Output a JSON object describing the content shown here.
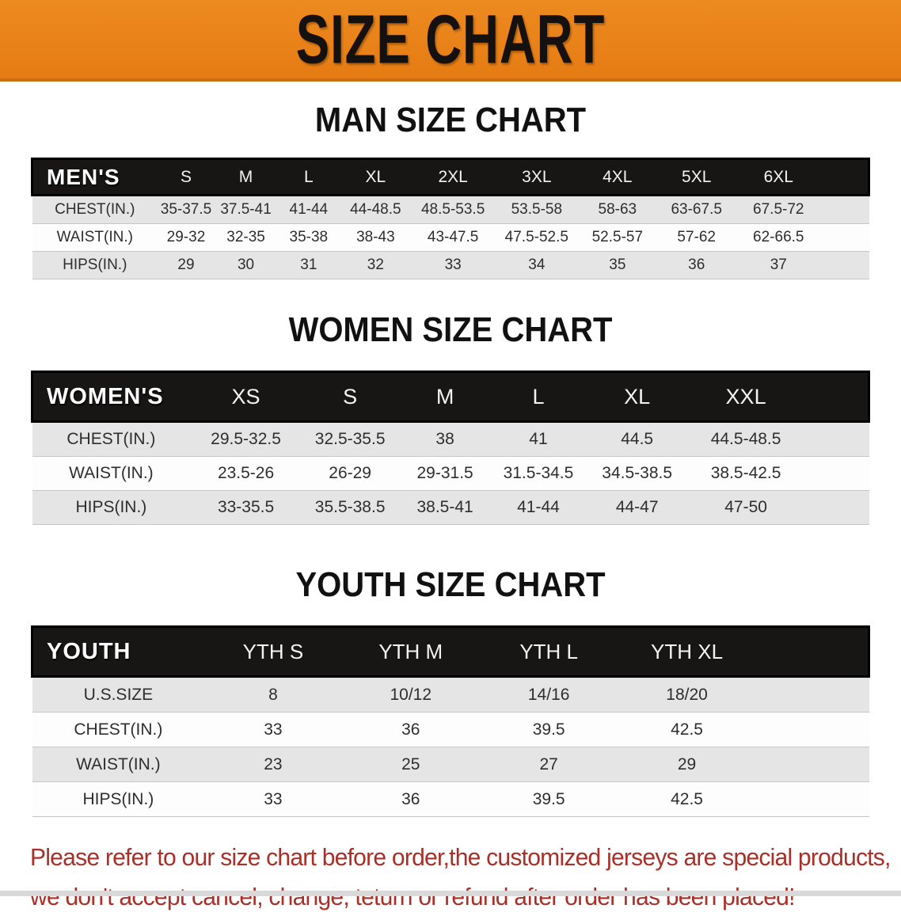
{
  "page": {
    "banner": {
      "title": "SIZE CHART",
      "bg_color": "#E8801A",
      "edge_color": "#C96E12",
      "title_color": "#141110"
    },
    "disclaimer": {
      "line1": "Please refer to our size chart before order,the customized jerseys are special products,",
      "line2": "we don't accept cancel, change, teturn or refund after order has been placed!",
      "color": "#A93029"
    },
    "colors": {
      "header_bar_bg": "#181515",
      "striped_row_bg": "#E5E5E5",
      "plain_row_bg": "#FDFDFD",
      "heading_color": "#111111"
    }
  },
  "sections": {
    "men": {
      "heading": "MAN SIZE CHART",
      "table": {
        "label": "MEN'S",
        "sizes": [
          "S",
          "M",
          "L",
          "XL",
          "2XL",
          "3XL",
          "4XL",
          "5XL",
          "6XL"
        ],
        "rows": [
          {
            "label": "CHEST(IN.)",
            "values": [
              "35-37.5",
              "37.5-41",
              "41-44",
              "44-48.5",
              "48.5-53.5",
              "53.5-58",
              "58-63",
              "63-67.5",
              "67.5-72"
            ]
          },
          {
            "label": "WAIST(IN.)",
            "values": [
              "29-32",
              "32-35",
              "35-38",
              "38-43",
              "43-47.5",
              "47.5-52.5",
              "52.5-57",
              "57-62",
              "62-66.5"
            ]
          },
          {
            "label": "HIPS(IN.)",
            "values": [
              "29",
              "30",
              "31",
              "32",
              "33",
              "34",
              "35",
              "36",
              "37"
            ]
          }
        ],
        "col_widths": [
          "15%",
          "6.8%",
          "7.5%",
          "7.5%",
          "8.5%",
          "10%",
          "10%",
          "9.3%",
          "9.6%",
          "10%",
          "5.8%"
        ]
      }
    },
    "women": {
      "heading": "WOMEN SIZE CHART",
      "table": {
        "label": "WOMEN'S",
        "sizes": [
          "XS",
          "S",
          "M",
          "L",
          "XL",
          "XXL"
        ],
        "rows": [
          {
            "label": "CHEST(IN.)",
            "values": [
              "29.5-32.5",
              "32.5-35.5",
              "38",
              "41",
              "44.5",
              "44.5-48.5"
            ]
          },
          {
            "label": "WAIST(IN.)",
            "values": [
              "23.5-26",
              "26-29",
              "29-31.5",
              "31.5-34.5",
              "34.5-38.5",
              "38.5-42.5"
            ]
          },
          {
            "label": "HIPS(IN.)",
            "values": [
              "33-35.5",
              "35.5-38.5",
              "38.5-41",
              "41-44",
              "44-47",
              "47-50"
            ]
          }
        ],
        "col_widths": [
          "18.9%",
          "13.3%",
          "11.6%",
          "11.1%",
          "11.2%",
          "12.4%",
          "13.6%",
          "7.9%"
        ]
      }
    },
    "youth": {
      "heading": "YOUTH SIZE CHART",
      "table": {
        "label": "YOUTH",
        "sizes": [
          "YTH S",
          "YTH M",
          "YTH L",
          "YTH XL"
        ],
        "rows": [
          {
            "label": "U.S.SIZE",
            "values": [
              "8",
              "10/12",
              "14/16",
              "18/20"
            ]
          },
          {
            "label": "CHEST(IN.)",
            "values": [
              "33",
              "36",
              "39.5",
              "42.5"
            ]
          },
          {
            "label": "WAIST(IN.)",
            "values": [
              "23",
              "25",
              "27",
              "29"
            ]
          },
          {
            "label": "HIPS(IN.)",
            "values": [
              "33",
              "36",
              "39.5",
              "42.5"
            ]
          }
        ],
        "col_widths": [
          "20.6%",
          "16.4%",
          "16.5%",
          "16.5%",
          "16.5%",
          "13.5%"
        ]
      }
    }
  }
}
